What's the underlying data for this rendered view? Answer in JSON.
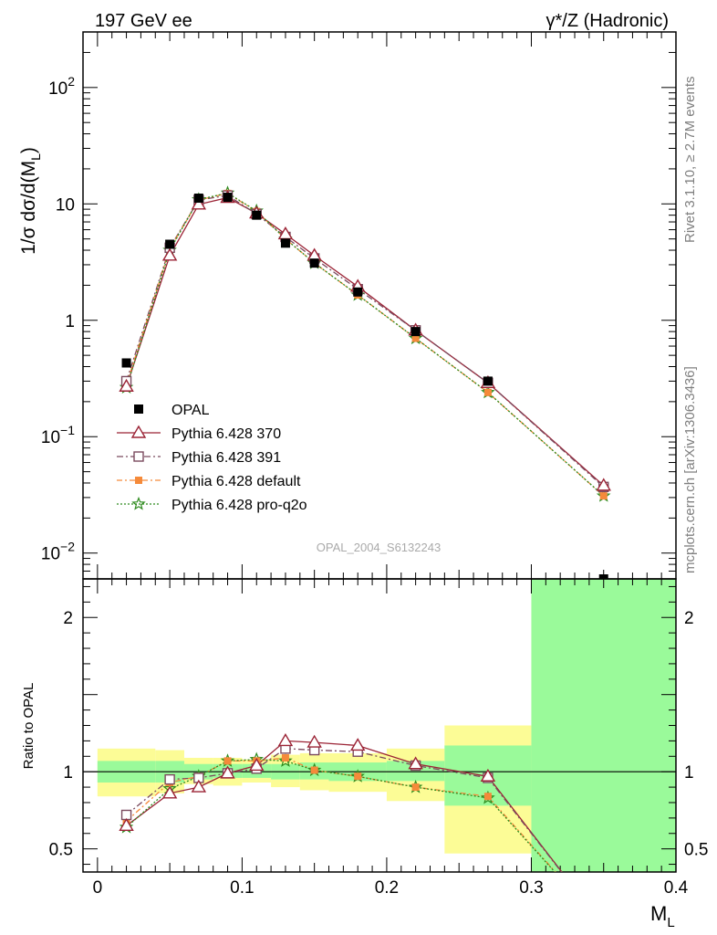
{
  "header": {
    "left_label": "197 GeV ee",
    "right_label": "γ*/Z (Hadronic)"
  },
  "side_labels": {
    "rivet": "Rivet 3.1.10, ≥ 2.7M events",
    "mcplots": "mcplots.cern.ch [arXiv:1306.3436]"
  },
  "watermark": "OPAL_2004_S6132243",
  "colors": {
    "data": "#000000",
    "p370": "#9b2335",
    "p391": "#7b4a5e",
    "pdefault": "#f58a3a",
    "pq2o": "#2e8b1e",
    "band_inner": "#9afa9a",
    "band_outer": "#fcfc96"
  },
  "chart_data": [
    {
      "type": "line",
      "panel": "main",
      "ylabel": "1/σ dσ/d(M",
      "ylabel_sub": "L",
      "ylabel_close": ")",
      "yscale": "log",
      "ylim": [
        0.006,
        300
      ],
      "xlim": [
        -0.01,
        0.4
      ],
      "yticks": [
        {
          "v": 0.01,
          "base": "10",
          "exp": "−2"
        },
        {
          "v": 0.1,
          "base": "10",
          "exp": "−1"
        },
        {
          "v": 1,
          "base": "1",
          "exp": ""
        },
        {
          "v": 10,
          "base": "10",
          "exp": ""
        },
        {
          "v": 100,
          "base": "10",
          "exp": "2"
        }
      ],
      "legend_placement": "left-middle",
      "series": [
        {
          "name": "OPAL",
          "key": "data",
          "marker": "square",
          "x": [
            0.02,
            0.05,
            0.07,
            0.09,
            0.11,
            0.13,
            0.15,
            0.18,
            0.22,
            0.27,
            0.35
          ],
          "y": [
            0.43,
            4.5,
            11.2,
            11.4,
            8.0,
            4.6,
            3.1,
            1.75,
            0.8,
            0.3,
            0.0055
          ]
        },
        {
          "name": "Pythia 6.428 370",
          "key": "p370",
          "marker": "triangle",
          "x": [
            0.02,
            0.05,
            0.07,
            0.09,
            0.11,
            0.13,
            0.15,
            0.18,
            0.22,
            0.27,
            0.35
          ],
          "y": [
            0.27,
            3.6,
            9.9,
            11.3,
            8.3,
            5.5,
            3.6,
            1.95,
            0.82,
            0.29,
            0.038
          ]
        },
        {
          "name": "Pythia 6.428 391",
          "key": "p391",
          "marker": "open-square",
          "x": [
            0.02,
            0.05,
            0.07,
            0.09,
            0.11,
            0.13,
            0.15,
            0.18,
            0.22,
            0.27,
            0.35
          ],
          "y": [
            0.3,
            4.2,
            10.8,
            11.8,
            8.2,
            5.2,
            3.4,
            1.85,
            0.82,
            0.29,
            0.037
          ]
        },
        {
          "name": "Pythia 6.428 default",
          "key": "pdefault",
          "marker": "filled-square",
          "x": [
            0.02,
            0.05,
            0.07,
            0.09,
            0.11,
            0.13,
            0.15,
            0.18,
            0.22,
            0.27,
            0.35
          ],
          "y": [
            0.28,
            4.1,
            10.8,
            12.3,
            8.6,
            5.0,
            3.1,
            1.65,
            0.7,
            0.24,
            0.031
          ]
        },
        {
          "name": "Pythia 6.428 pro-q2o",
          "key": "pq2o",
          "marker": "star",
          "x": [
            0.02,
            0.05,
            0.07,
            0.09,
            0.11,
            0.13,
            0.15,
            0.18,
            0.22,
            0.27,
            0.35
          ],
          "y": [
            0.265,
            4.0,
            10.9,
            12.4,
            8.7,
            5.0,
            3.1,
            1.65,
            0.7,
            0.24,
            0.031
          ]
        }
      ]
    },
    {
      "type": "line",
      "panel": "ratio",
      "ylabel": "Ratio to OPAL",
      "xlabel": "M",
      "xlabel_sub": "L",
      "xlim": [
        -0.01,
        0.4
      ],
      "ylim": [
        0.35,
        2.25
      ],
      "yticks": [
        {
          "v": 0.5,
          "label": "0.5"
        },
        {
          "v": 1,
          "label": "1"
        },
        {
          "v": 2,
          "label": "2"
        }
      ],
      "xticks": [
        {
          "v": 0,
          "label": "0"
        },
        {
          "v": 0.1,
          "label": "0.1"
        },
        {
          "v": 0.2,
          "label": "0.2"
        },
        {
          "v": 0.3,
          "label": "0.3"
        },
        {
          "v": 0.4,
          "label": "0.4"
        }
      ],
      "bands": [
        {
          "x0": 0.0,
          "x1": 0.04,
          "inner": [
            0.93,
            1.07
          ],
          "outer": [
            0.84,
            1.15
          ]
        },
        {
          "x0": 0.04,
          "x1": 0.06,
          "inner": [
            0.93,
            1.07
          ],
          "outer": [
            0.86,
            1.14
          ]
        },
        {
          "x0": 0.06,
          "x1": 0.08,
          "inner": [
            0.95,
            1.05
          ],
          "outer": [
            0.92,
            1.09
          ]
        },
        {
          "x0": 0.08,
          "x1": 0.1,
          "inner": [
            0.96,
            1.05
          ],
          "outer": [
            0.91,
            1.09
          ]
        },
        {
          "x0": 0.1,
          "x1": 0.12,
          "inner": [
            0.96,
            1.05
          ],
          "outer": [
            0.93,
            1.08
          ]
        },
        {
          "x0": 0.12,
          "x1": 0.14,
          "inner": [
            0.95,
            1.05
          ],
          "outer": [
            0.9,
            1.11
          ]
        },
        {
          "x0": 0.14,
          "x1": 0.16,
          "inner": [
            0.95,
            1.06
          ],
          "outer": [
            0.88,
            1.12
          ]
        },
        {
          "x0": 0.16,
          "x1": 0.2,
          "inner": [
            0.94,
            1.06
          ],
          "outer": [
            0.87,
            1.12
          ]
        },
        {
          "x0": 0.2,
          "x1": 0.24,
          "inner": [
            0.94,
            1.07
          ],
          "outer": [
            0.81,
            1.15
          ]
        },
        {
          "x0": 0.24,
          "x1": 0.3,
          "inner": [
            0.78,
            1.17
          ],
          "outer": [
            0.47,
            1.3
          ]
        },
        {
          "x0": 0.3,
          "x1": 0.4,
          "inner": [
            0.0,
            9.0
          ],
          "outer": [
            0.0,
            9.0
          ]
        }
      ],
      "series": [
        {
          "name": "Pythia 6.428 370",
          "key": "p370",
          "marker": "triangle",
          "x": [
            0.02,
            0.05,
            0.07,
            0.09,
            0.11,
            0.13,
            0.15,
            0.18,
            0.22,
            0.27,
            0.35
          ],
          "y": [
            0.65,
            0.86,
            0.9,
            0.99,
            1.04,
            1.2,
            1.19,
            1.17,
            1.05,
            0.97,
            0.0
          ]
        },
        {
          "name": "Pythia 6.428 391",
          "key": "p391",
          "marker": "open-square",
          "x": [
            0.02,
            0.05,
            0.07,
            0.09,
            0.11,
            0.13,
            0.15,
            0.18,
            0.22,
            0.27,
            0.35
          ],
          "y": [
            0.72,
            0.95,
            0.96,
            0.99,
            1.02,
            1.15,
            1.14,
            1.13,
            1.04,
            0.96,
            0.0
          ]
        },
        {
          "name": "Pythia 6.428 default",
          "key": "pdefault",
          "marker": "filled-square",
          "x": [
            0.02,
            0.05,
            0.07,
            0.09,
            0.11,
            0.13,
            0.15,
            0.18,
            0.22,
            0.27,
            0.35
          ],
          "y": [
            0.68,
            0.93,
            0.97,
            1.07,
            1.07,
            1.09,
            1.01,
            0.97,
            0.9,
            0.84,
            0.0
          ]
        },
        {
          "name": "Pythia 6.428 pro-q2o",
          "key": "pq2o",
          "marker": "star",
          "x": [
            0.02,
            0.05,
            0.07,
            0.09,
            0.11,
            0.13,
            0.15,
            0.18,
            0.22,
            0.27,
            0.35
          ],
          "y": [
            0.64,
            0.89,
            0.97,
            1.07,
            1.08,
            1.07,
            1.01,
            0.97,
            0.9,
            0.83,
            0.0
          ]
        }
      ]
    }
  ]
}
